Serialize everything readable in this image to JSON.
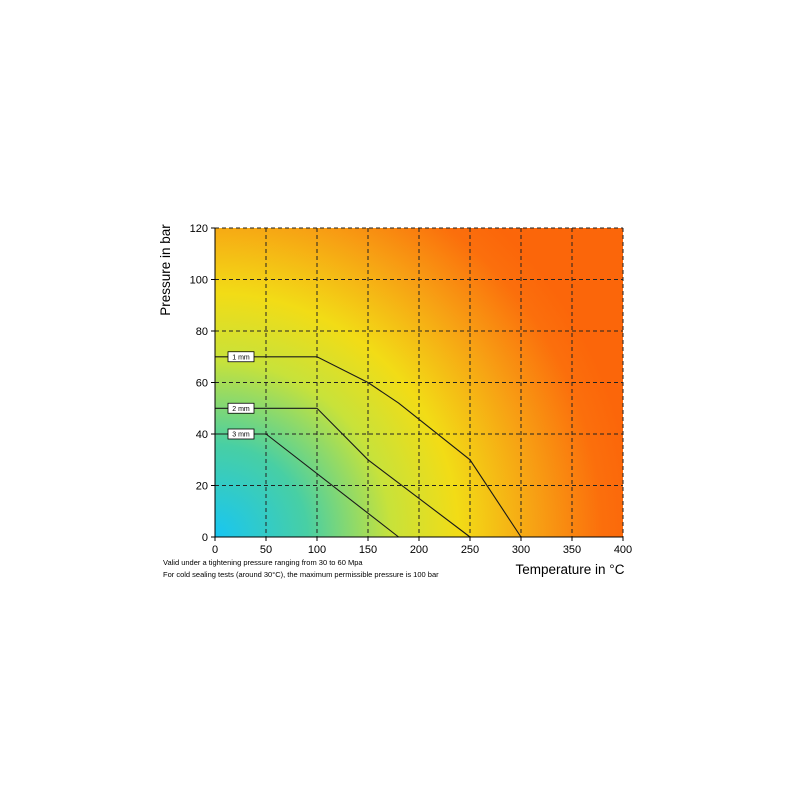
{
  "chart_data": {
    "type": "line",
    "xlabel": "Temperature in °C",
    "ylabel": "Pressure in bar",
    "xlim": [
      0,
      400
    ],
    "ylim": [
      0,
      120
    ],
    "x_ticks": [
      0,
      50,
      100,
      150,
      200,
      250,
      300,
      350,
      400
    ],
    "y_ticks": [
      0,
      20,
      40,
      60,
      80,
      100,
      120
    ],
    "grid": "dashed",
    "background": "gradient cyan-yellow-orange (safe zone to unsafe zone)",
    "series": [
      {
        "name": "1 mm",
        "points": [
          [
            0,
            70
          ],
          [
            100,
            70
          ],
          [
            150,
            60
          ],
          [
            180,
            52
          ],
          [
            250,
            30
          ],
          [
            300,
            0
          ]
        ]
      },
      {
        "name": "2 mm",
        "points": [
          [
            0,
            50
          ],
          [
            100,
            50
          ],
          [
            150,
            30
          ],
          [
            250,
            0
          ]
        ]
      },
      {
        "name": "3 mm",
        "points": [
          [
            0,
            40
          ],
          [
            50,
            40
          ],
          [
            180,
            0
          ]
        ]
      }
    ],
    "notes": [
      "Valid under a tightening pressure ranging from 30 to 60 Mpa",
      "For cold sealing tests (around 30°C), the maximum permissible pressure is 100 bar"
    ]
  },
  "colors": {
    "grid": "#222222",
    "series_line": "#1a1a1a",
    "gradient_cyan": "#18c6f2",
    "gradient_yellow": "#f2dc16",
    "gradient_orange": "#fb6a0a"
  }
}
